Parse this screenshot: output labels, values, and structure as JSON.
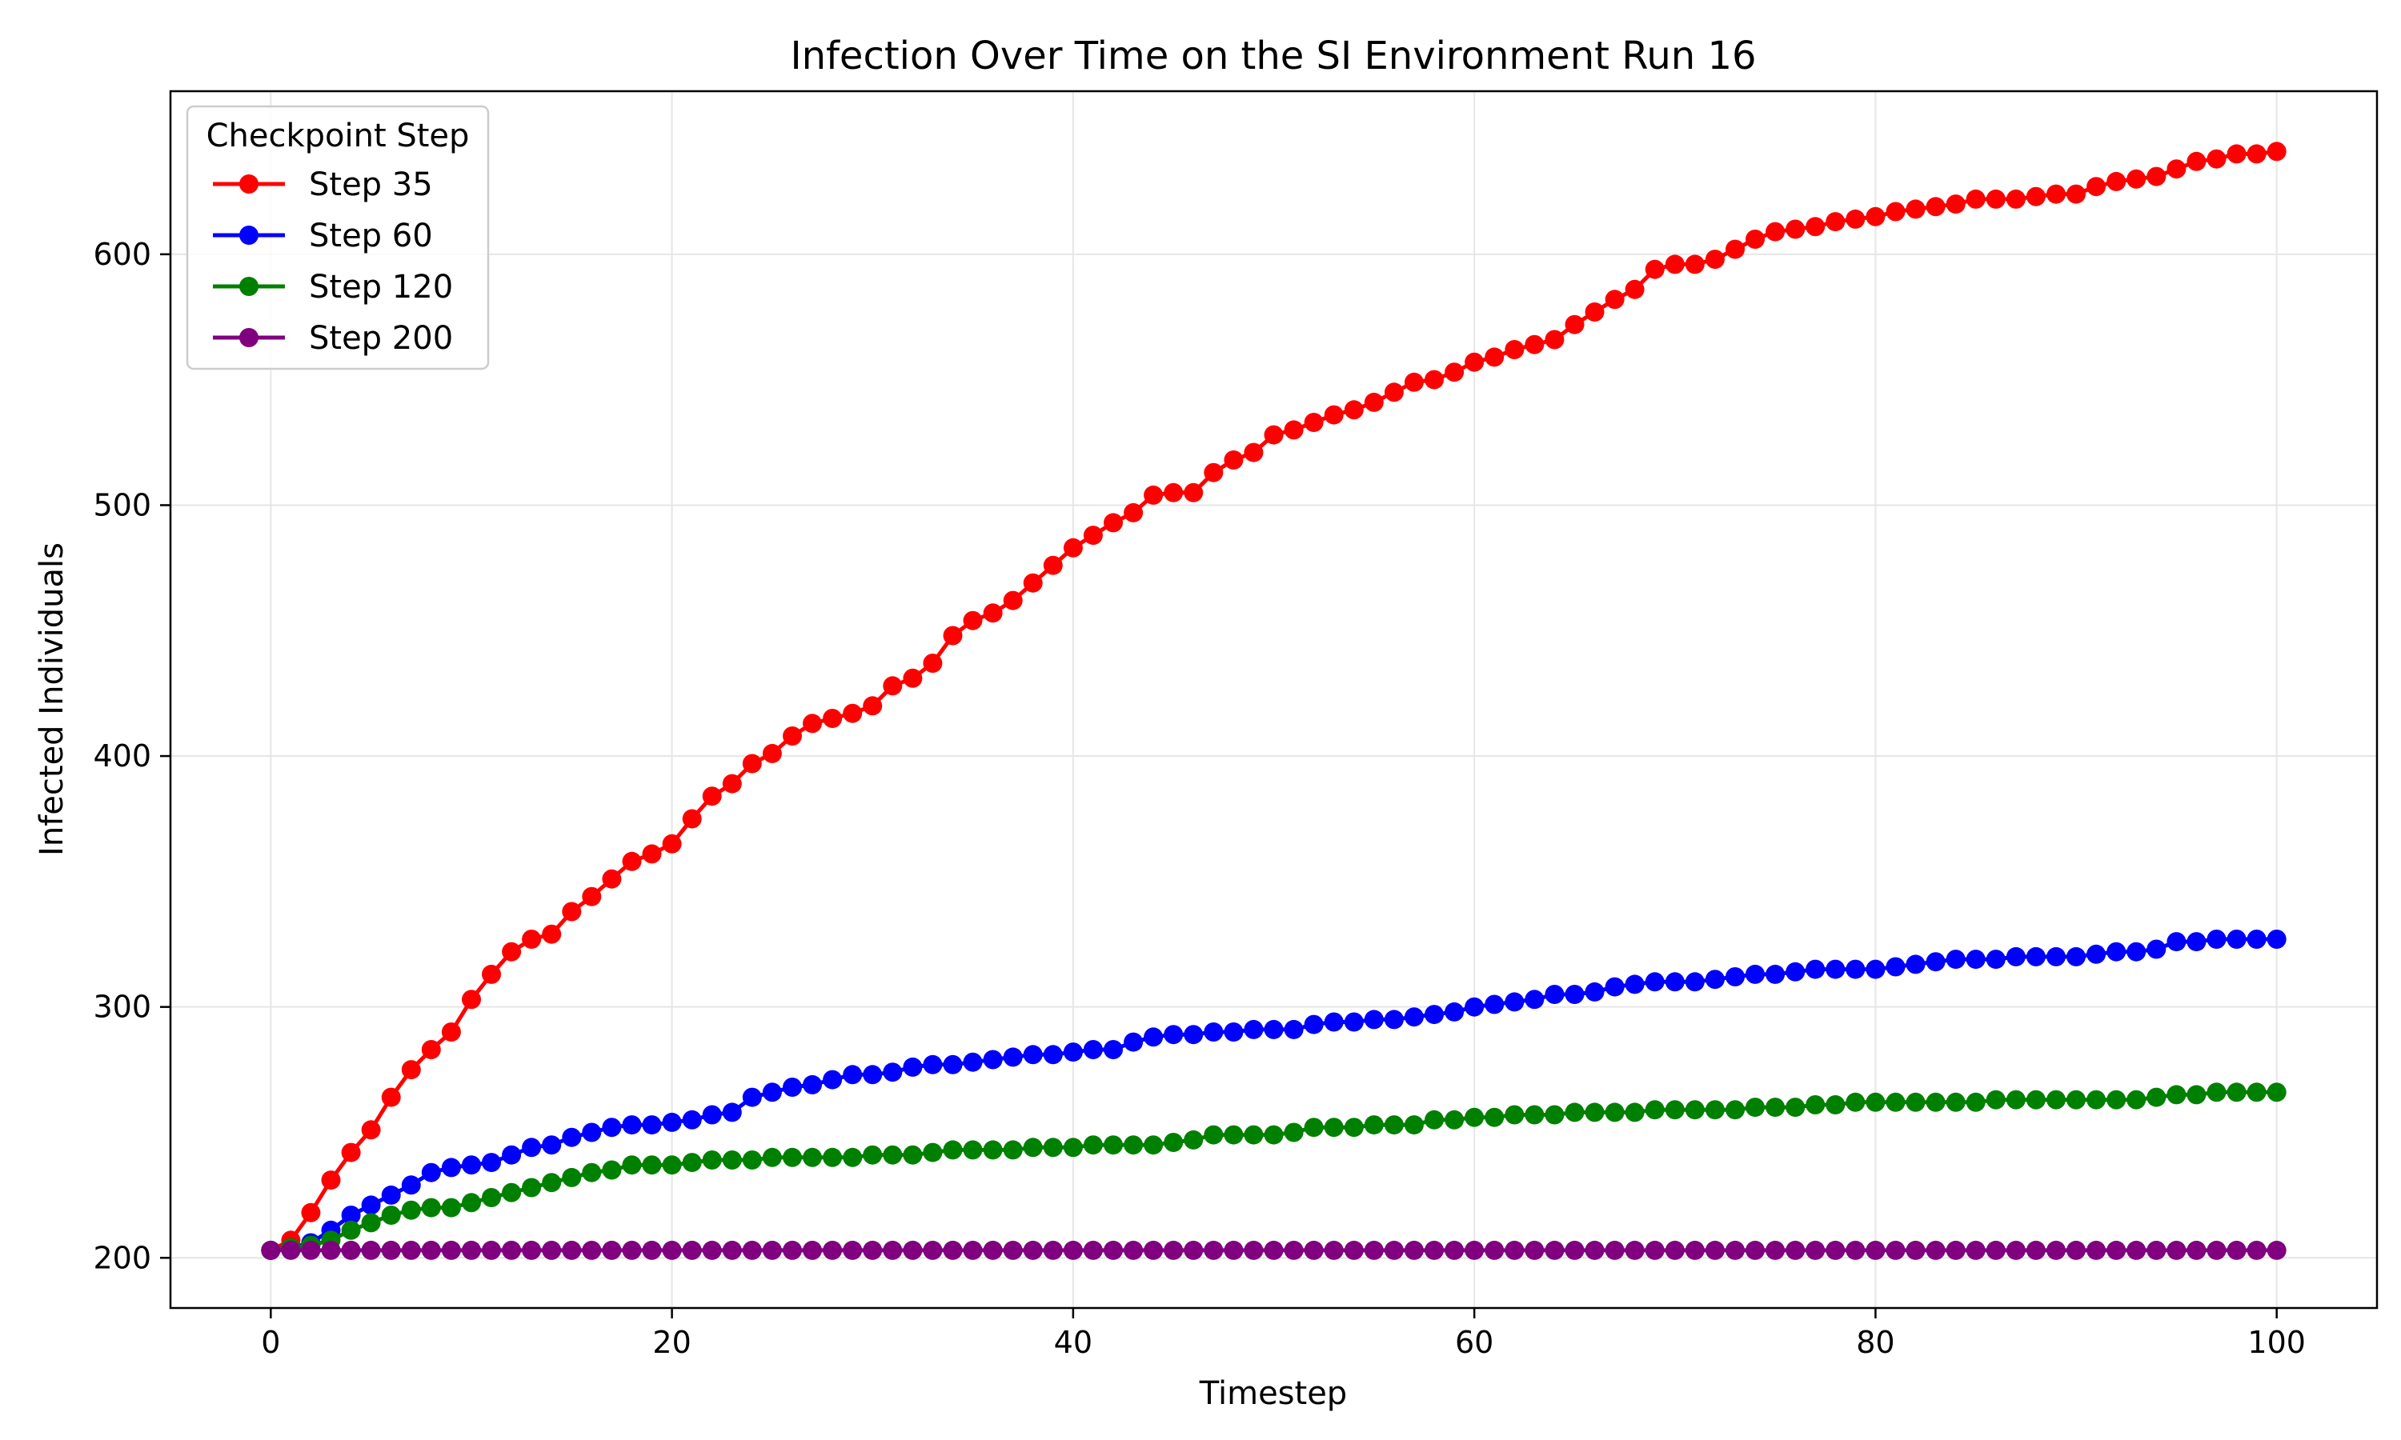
{
  "chart_data": {
    "type": "line",
    "title": "Infection Over Time on the SI Environment Run 16",
    "xlabel": "Timestep",
    "ylabel": "Infected Individuals",
    "xlim": [
      -5,
      105
    ],
    "ylim": [
      180,
      665
    ],
    "xticks": [
      0,
      20,
      40,
      60,
      80,
      100
    ],
    "yticks": [
      200,
      300,
      400,
      500,
      600
    ],
    "grid": true,
    "legend": {
      "title": "Checkpoint Step",
      "placement": "upper-left"
    },
    "x": [
      0,
      1,
      2,
      3,
      4,
      5,
      6,
      7,
      8,
      9,
      10,
      11,
      12,
      13,
      14,
      15,
      16,
      17,
      18,
      19,
      20,
      21,
      22,
      23,
      24,
      25,
      26,
      27,
      28,
      29,
      30,
      31,
      32,
      33,
      34,
      35,
      36,
      37,
      38,
      39,
      40,
      41,
      42,
      43,
      44,
      45,
      46,
      47,
      48,
      49,
      50,
      51,
      52,
      53,
      54,
      55,
      56,
      57,
      58,
      59,
      60,
      61,
      62,
      63,
      64,
      65,
      66,
      67,
      68,
      69,
      70,
      71,
      72,
      73,
      74,
      75,
      76,
      77,
      78,
      79,
      80,
      81,
      82,
      83,
      84,
      85,
      86,
      87,
      88,
      89,
      90,
      91,
      92,
      93,
      94,
      95,
      96,
      97,
      98,
      99,
      100
    ],
    "series": [
      {
        "name": "Step 35",
        "color": "#ff0000",
        "values": [
          203,
          207,
          218,
          231,
          242,
          251,
          264,
          275,
          283,
          290,
          303,
          313,
          322,
          327,
          329,
          338,
          344,
          351,
          358,
          361,
          365,
          375,
          384,
          389,
          397,
          401,
          408,
          413,
          415,
          417,
          420,
          428,
          431,
          437,
          448,
          454,
          457,
          462,
          469,
          476,
          483,
          488,
          493,
          497,
          504,
          505,
          505,
          513,
          518,
          521,
          528,
          530,
          533,
          536,
          538,
          541,
          545,
          549,
          550,
          553,
          557,
          559,
          562,
          564,
          566,
          572,
          577,
          582,
          586,
          594,
          596,
          596,
          598,
          602,
          606,
          609,
          610,
          611,
          613,
          614,
          615,
          617,
          618,
          619,
          620,
          622,
          622,
          622,
          623,
          624,
          624,
          627,
          629,
          630,
          631,
          634,
          637,
          638,
          640,
          640,
          641
        ]
      },
      {
        "name": "Step 60",
        "color": "#0000ff",
        "values": [
          203,
          204,
          206,
          211,
          217,
          221,
          225,
          229,
          234,
          236,
          237,
          238,
          241,
          244,
          245,
          248,
          250,
          252,
          253,
          253,
          254,
          255,
          257,
          258,
          264,
          266,
          268,
          269,
          271,
          273,
          273,
          274,
          276,
          277,
          277,
          278,
          279,
          280,
          281,
          281,
          282,
          283,
          283,
          286,
          288,
          289,
          289,
          290,
          290,
          291,
          291,
          291,
          293,
          294,
          294,
          295,
          295,
          296,
          297,
          298,
          300,
          301,
          302,
          303,
          305,
          305,
          306,
          308,
          309,
          310,
          310,
          310,
          311,
          312,
          313,
          313,
          314,
          315,
          315,
          315,
          315,
          316,
          317,
          318,
          319,
          319,
          319,
          320,
          320,
          320,
          320,
          321,
          322,
          322,
          323,
          326,
          326,
          327,
          327,
          327,
          327
        ]
      },
      {
        "name": "Step 120",
        "color": "#008000",
        "values": [
          203,
          204,
          205,
          207,
          211,
          214,
          217,
          219,
          220,
          220,
          222,
          224,
          226,
          228,
          230,
          232,
          234,
          235,
          237,
          237,
          237,
          238,
          239,
          239,
          239,
          240,
          240,
          240,
          240,
          240,
          241,
          241,
          241,
          242,
          243,
          243,
          243,
          243,
          244,
          244,
          244,
          245,
          245,
          245,
          245,
          246,
          247,
          249,
          249,
          249,
          249,
          250,
          252,
          252,
          252,
          253,
          253,
          253,
          255,
          255,
          256,
          256,
          257,
          257,
          257,
          258,
          258,
          258,
          258,
          259,
          259,
          259,
          259,
          259,
          260,
          260,
          260,
          261,
          261,
          262,
          262,
          262,
          262,
          262,
          262,
          262,
          263,
          263,
          263,
          263,
          263,
          263,
          263,
          263,
          264,
          265,
          265,
          266,
          266,
          266,
          266
        ]
      },
      {
        "name": "Step 200",
        "color": "#800080",
        "values": [
          203,
          203,
          203,
          203,
          203,
          203,
          203,
          203,
          203,
          203,
          203,
          203,
          203,
          203,
          203,
          203,
          203,
          203,
          203,
          203,
          203,
          203,
          203,
          203,
          203,
          203,
          203,
          203,
          203,
          203,
          203,
          203,
          203,
          203,
          203,
          203,
          203,
          203,
          203,
          203,
          203,
          203,
          203,
          203,
          203,
          203,
          203,
          203,
          203,
          203,
          203,
          203,
          203,
          203,
          203,
          203,
          203,
          203,
          203,
          203,
          203,
          203,
          203,
          203,
          203,
          203,
          203,
          203,
          203,
          203,
          203,
          203,
          203,
          203,
          203,
          203,
          203,
          203,
          203,
          203,
          203,
          203,
          203,
          203,
          203,
          203,
          203,
          203,
          203,
          203,
          203,
          203,
          203,
          203,
          203,
          203,
          203,
          203,
          203,
          203,
          203
        ]
      }
    ]
  }
}
